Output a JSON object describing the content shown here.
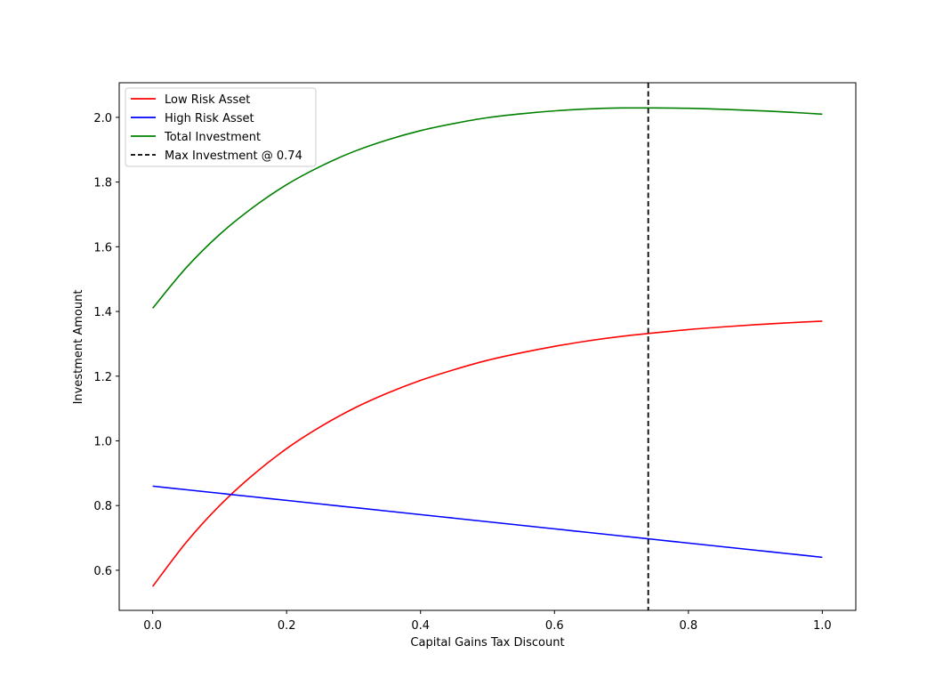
{
  "chart_data": {
    "type": "line",
    "title": "",
    "xlabel": "Capital Gains Tax Discount",
    "ylabel": "Investment Amount",
    "xlim": [
      -0.05,
      1.05
    ],
    "ylim": [
      0.476,
      2.107
    ],
    "xticks": [
      0.0,
      0.2,
      0.4,
      0.6,
      0.8,
      1.0
    ],
    "xtick_labels": [
      "0.0",
      "0.2",
      "0.4",
      "0.6",
      "0.8",
      "1.0"
    ],
    "yticks": [
      0.6,
      0.8,
      1.0,
      1.2,
      1.4,
      1.6,
      1.8,
      2.0
    ],
    "ytick_labels": [
      "0.6",
      "0.8",
      "1.0",
      "1.2",
      "1.4",
      "1.6",
      "1.8",
      "2.0"
    ],
    "grid": false,
    "legend_position": "upper left",
    "x": [
      0.0,
      0.05,
      0.1,
      0.15,
      0.2,
      0.25,
      0.3,
      0.35,
      0.4,
      0.45,
      0.5,
      0.55,
      0.6,
      0.65,
      0.7,
      0.75,
      0.8,
      0.85,
      0.9,
      0.95,
      1.0
    ],
    "series": [
      {
        "name": "Low Risk Asset",
        "color": "#ff0000",
        "style": "solid",
        "values": [
          0.55,
          0.686,
          0.8,
          0.895,
          0.976,
          1.043,
          1.1,
          1.147,
          1.187,
          1.22,
          1.249,
          1.272,
          1.292,
          1.309,
          1.323,
          1.334,
          1.344,
          1.352,
          1.359,
          1.365,
          1.37
        ]
      },
      {
        "name": "High Risk Asset",
        "color": "#0000ff",
        "style": "solid",
        "values": [
          0.86,
          0.849,
          0.838,
          0.827,
          0.816,
          0.805,
          0.794,
          0.783,
          0.772,
          0.761,
          0.75,
          0.739,
          0.728,
          0.717,
          0.706,
          0.695,
          0.684,
          0.673,
          0.662,
          0.651,
          0.64
        ]
      },
      {
        "name": "Total Investment",
        "color": "#008000",
        "style": "solid",
        "values": [
          1.41,
          1.535,
          1.638,
          1.722,
          1.792,
          1.848,
          1.894,
          1.93,
          1.959,
          1.981,
          1.999,
          2.011,
          2.02,
          2.026,
          2.029,
          2.029,
          2.028,
          2.025,
          2.021,
          2.016,
          2.01
        ]
      }
    ],
    "annotations": [
      {
        "type": "vline",
        "x": 0.74,
        "color": "#000000",
        "style": "dashed",
        "label": "Max Investment @ 0.74"
      }
    ],
    "legend": [
      "Low Risk Asset",
      "High Risk Asset",
      "Total Investment",
      "Max Investment @ 0.74"
    ]
  }
}
